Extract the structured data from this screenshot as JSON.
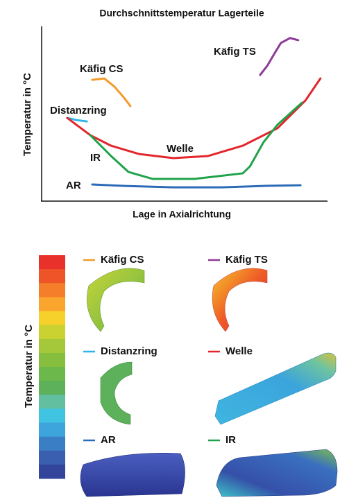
{
  "chart_data": {
    "type": "line",
    "title": "Durchschnittstemperatur Lagerteile",
    "ylabel": "Temperatur in °C",
    "xlabel": "Lage in Axialrichtung",
    "xlim": [
      0,
      100
    ],
    "ylim": [
      0,
      100
    ],
    "series": [
      {
        "name": "Käfig CS",
        "color": "#f39a2b",
        "x": [
          17.8,
          22,
          25.6,
          28.8,
          31.2
        ],
        "values": [
          69.4,
          70.2,
          65.5,
          59.5,
          54.4
        ]
      },
      {
        "name": "Käfig TS",
        "color": "#8e3a97",
        "x": [
          76.8,
          79.3,
          81.7,
          84.1,
          87.3,
          90.2
        ],
        "values": [
          72.2,
          77.4,
          84.1,
          90.5,
          93.3,
          92.1
        ]
      },
      {
        "name": "Distanzring",
        "color": "#2cb5e8",
        "x": [
          9,
          12.2,
          15.9
        ],
        "values": [
          47.6,
          46.4,
          45.6
        ]
      },
      {
        "name": "Welle",
        "color": "#e3252c",
        "x": [
          9,
          17.1,
          24.4,
          34.1,
          46.3,
          58.5,
          70.7,
          82.9,
          92.7,
          98
        ],
        "values": [
          47.6,
          37.7,
          31.7,
          27,
          24.6,
          25.8,
          31.7,
          41.7,
          57.5,
          70.2
        ]
      },
      {
        "name": "AR",
        "color": "#2c6bb8",
        "x": [
          17.8,
          29.3,
          46.3,
          63.4,
          78,
          91
        ],
        "values": [
          9.5,
          8.7,
          7.9,
          7.9,
          8.7,
          9.1
        ]
      },
      {
        "name": "IR",
        "color": "#1fa34a",
        "x": [
          17.1,
          24.4,
          30.5,
          39,
          53.7,
          70.7,
          73.2,
          78,
          82.9,
          91.5
        ],
        "values": [
          37.7,
          25.8,
          16.7,
          12.7,
          12.7,
          15.9,
          19.8,
          33.7,
          43.7,
          56.3
        ]
      }
    ]
  },
  "colorbar": {
    "label": "Temperatur in °C",
    "colors": [
      "#e8312b",
      "#ee5427",
      "#f47e29",
      "#f9a52e",
      "#f7d12b",
      "#c9d231",
      "#a4c83a",
      "#86bf3d",
      "#6cb84a",
      "#5cb15a",
      "#62bfa0",
      "#40c3e0",
      "#3ea4dc",
      "#3a7fc6",
      "#3a5fb0",
      "#33449b"
    ]
  }
}
